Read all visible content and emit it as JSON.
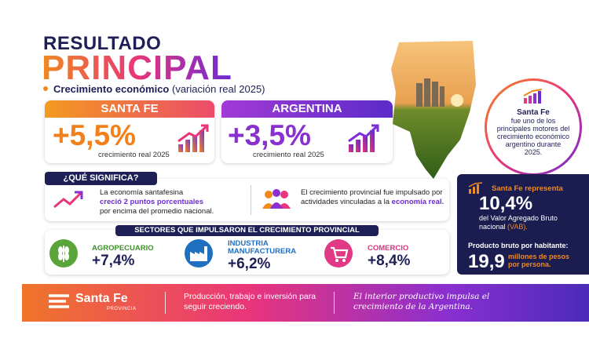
{
  "header": {
    "title_line1": "RESULTADO",
    "title_line2": "PRINCIPAL",
    "subtitle_bold": "Crecimiento económico",
    "subtitle_rest": "(variación real 2025)"
  },
  "cards": [
    {
      "region": "SANTA FE",
      "value": "+5,5%",
      "caption": "crecimiento real 2025"
    },
    {
      "region": "ARGENTINA",
      "value": "+3,5%",
      "caption": "crecimiento real 2025"
    }
  ],
  "callout": {
    "region": "Santa Fe",
    "text": "fue uno de los principales motores del crecimiento económico argentino durante 2025."
  },
  "meaning": {
    "title": "¿QUÉ SIGNIFICA?",
    "item1_start": "La economía santafesina",
    "item1_bold": "creció 2 puntos porcentuales",
    "item1_end": "por encima del promedio nacional.",
    "item2_start": "El crecimiento provincial fue impulsado por actividades vinculadas a la",
    "item2_bold": "economía real."
  },
  "sectors": {
    "title": "SECTORES QUE IMPULSARON EL CRECIMIENTO PROVINCIAL",
    "items": [
      {
        "name": "AGROPECUARIO",
        "value": "+7,4%"
      },
      {
        "name": "INDUSTRIA MANUFACTURERA",
        "value": "+6,2%"
      },
      {
        "name": "COMERCIO",
        "value": "+8,4%"
      }
    ]
  },
  "stats": {
    "heading": "Santa Fe representa",
    "value": "10,4%",
    "text": "del Valor Agregado Bruto nacional",
    "highlight": "(VAB).",
    "per_capita_label": "Producto bruto por habitante:",
    "per_capita_value": "19,9",
    "per_capita_unit": "millones de pesos por persona."
  },
  "footer": {
    "logo_name": "Santa Fe",
    "logo_sub": "PROVINCIA",
    "tagline": "Producción, trabajo e inversión para seguir creciendo.",
    "slogan": "El interior productivo impulsa el crecimiento de la Argentina."
  }
}
